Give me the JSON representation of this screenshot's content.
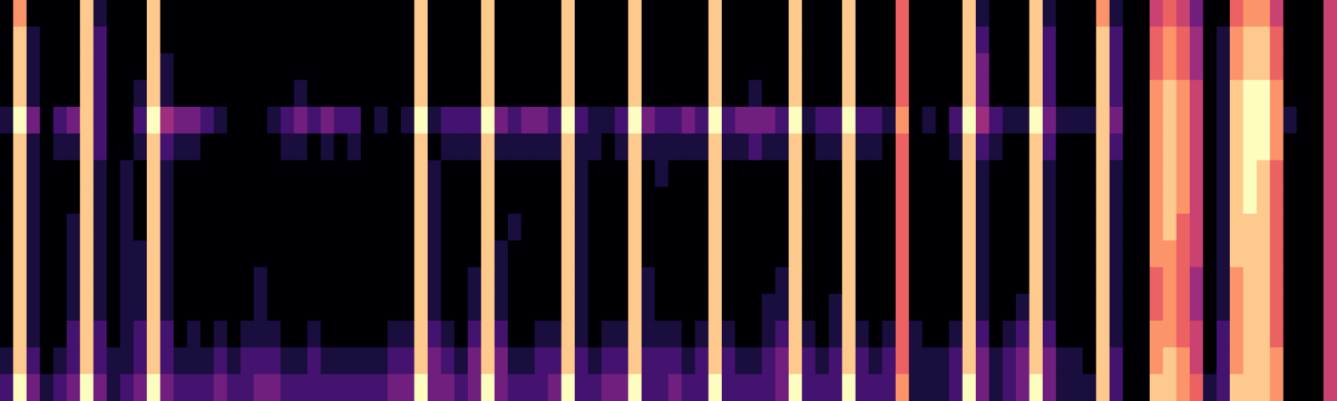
{
  "chart_data": {
    "type": "heatmap",
    "grid": false,
    "tick_labels": false,
    "cells": [
      [
        0,
        7,
        0,
        0,
        0,
        0,
        8,
        1,
        0,
        0,
        0,
        8,
        0,
        0,
        0,
        0,
        0,
        0,
        0,
        0,
        0,
        0,
        0,
        0,
        0,
        0,
        0,
        0,
        0,
        0,
        0,
        8,
        0,
        0,
        0,
        0,
        8,
        0,
        0,
        0,
        0,
        0,
        8,
        0,
        0,
        0,
        0,
        8,
        0,
        0,
        0,
        0,
        0,
        8,
        0,
        0,
        0,
        0,
        0,
        8,
        0,
        0,
        0,
        8,
        0,
        0,
        0,
        6,
        0,
        0,
        0,
        0,
        8,
        1,
        0,
        0,
        0,
        8,
        1,
        0,
        0,
        0,
        7,
        1,
        0,
        0,
        5,
        6,
        5,
        3,
        0,
        0,
        6,
        7,
        7,
        5,
        0,
        0,
        0,
        5
      ],
      [
        0,
        8,
        1,
        0,
        0,
        0,
        8,
        2,
        0,
        0,
        0,
        8,
        0,
        0,
        0,
        0,
        0,
        0,
        0,
        0,
        0,
        0,
        0,
        0,
        0,
        0,
        0,
        0,
        0,
        0,
        0,
        8,
        0,
        0,
        0,
        0,
        8,
        0,
        0,
        0,
        0,
        0,
        8,
        0,
        0,
        0,
        0,
        8,
        0,
        0,
        0,
        0,
        0,
        8,
        0,
        0,
        0,
        0,
        0,
        8,
        0,
        0,
        0,
        8,
        0,
        0,
        0,
        6,
        0,
        0,
        0,
        0,
        8,
        2,
        0,
        0,
        0,
        8,
        2,
        0,
        0,
        0,
        8,
        2,
        0,
        0,
        6,
        7,
        6,
        4,
        0,
        1,
        7,
        8,
        8,
        6,
        0,
        0,
        0,
        5
      ],
      [
        0,
        8,
        1,
        0,
        0,
        0,
        8,
        2,
        0,
        0,
        0,
        8,
        1,
        0,
        0,
        0,
        0,
        0,
        0,
        0,
        0,
        0,
        0,
        0,
        0,
        0,
        0,
        0,
        0,
        0,
        0,
        8,
        0,
        0,
        0,
        0,
        8,
        0,
        0,
        0,
        0,
        0,
        8,
        0,
        0,
        0,
        0,
        8,
        0,
        0,
        0,
        0,
        0,
        8,
        0,
        0,
        0,
        0,
        0,
        8,
        0,
        0,
        0,
        8,
        0,
        0,
        0,
        6,
        0,
        0,
        0,
        0,
        8,
        3,
        0,
        0,
        0,
        8,
        2,
        0,
        0,
        0,
        8,
        2,
        0,
        0,
        6,
        7,
        6,
        4,
        0,
        1,
        7,
        8,
        8,
        6,
        0,
        0,
        0,
        5
      ],
      [
        0,
        8,
        1,
        0,
        0,
        0,
        8,
        2,
        0,
        0,
        1,
        8,
        1,
        0,
        0,
        0,
        0,
        0,
        0,
        0,
        0,
        0,
        1,
        0,
        0,
        0,
        0,
        0,
        0,
        0,
        0,
        8,
        0,
        0,
        0,
        0,
        8,
        0,
        0,
        0,
        0,
        0,
        8,
        0,
        0,
        0,
        0,
        8,
        0,
        0,
        0,
        0,
        0,
        8,
        0,
        0,
        1,
        0,
        0,
        8,
        0,
        0,
        0,
        8,
        0,
        0,
        0,
        6,
        0,
        0,
        0,
        0,
        8,
        3,
        0,
        0,
        0,
        8,
        2,
        0,
        0,
        0,
        8,
        2,
        0,
        0,
        7,
        8,
        7,
        5,
        0,
        1,
        8,
        9,
        9,
        7,
        0,
        0,
        0,
        5
      ],
      [
        1,
        9,
        3,
        0,
        2,
        3,
        8,
        2,
        0,
        0,
        2,
        9,
        4,
        3,
        3,
        2,
        1,
        0,
        0,
        0,
        1,
        2,
        3,
        2,
        3,
        2,
        2,
        0,
        1,
        0,
        1,
        9,
        1,
        2,
        2,
        2,
        9,
        3,
        2,
        3,
        3,
        2,
        9,
        2,
        1,
        1,
        2,
        9,
        3,
        2,
        2,
        3,
        2,
        9,
        2,
        3,
        3,
        3,
        2,
        9,
        1,
        2,
        2,
        9,
        2,
        2,
        1,
        7,
        0,
        1,
        0,
        2,
        9,
        4,
        2,
        1,
        1,
        9,
        3,
        1,
        1,
        1,
        8,
        3,
        0,
        0,
        7,
        8,
        7,
        5,
        0,
        1,
        8,
        9,
        9,
        7,
        1,
        0,
        0,
        5
      ],
      [
        0,
        8,
        1,
        0,
        1,
        1,
        8,
        2,
        0,
        0,
        1,
        8,
        2,
        1,
        1,
        0,
        0,
        0,
        0,
        0,
        0,
        1,
        1,
        0,
        1,
        0,
        1,
        0,
        0,
        0,
        0,
        8,
        0,
        1,
        1,
        1,
        8,
        1,
        1,
        1,
        1,
        1,
        8,
        1,
        1,
        0,
        1,
        8,
        1,
        1,
        1,
        1,
        1,
        8,
        1,
        1,
        2,
        1,
        1,
        8,
        0,
        1,
        1,
        8,
        1,
        1,
        0,
        6,
        0,
        0,
        0,
        1,
        8,
        2,
        1,
        0,
        0,
        8,
        2,
        0,
        0,
        0,
        8,
        2,
        0,
        0,
        7,
        8,
        7,
        5,
        0,
        1,
        8,
        9,
        9,
        7,
        0,
        0,
        0,
        5
      ],
      [
        0,
        8,
        1,
        0,
        0,
        0,
        8,
        1,
        0,
        1,
        0,
        8,
        1,
        0,
        0,
        0,
        0,
        0,
        0,
        0,
        0,
        0,
        0,
        0,
        0,
        0,
        0,
        0,
        0,
        0,
        0,
        8,
        1,
        0,
        0,
        0,
        8,
        0,
        0,
        0,
        0,
        0,
        8,
        1,
        0,
        0,
        0,
        8,
        0,
        1,
        0,
        0,
        0,
        8,
        0,
        0,
        0,
        0,
        0,
        8,
        0,
        0,
        0,
        8,
        0,
        0,
        0,
        6,
        0,
        0,
        0,
        0,
        8,
        1,
        0,
        0,
        0,
        8,
        1,
        0,
        0,
        0,
        8,
        1,
        0,
        0,
        7,
        8,
        7,
        5,
        0,
        1,
        8,
        9,
        8,
        6,
        0,
        0,
        0,
        5
      ],
      [
        0,
        8,
        1,
        0,
        0,
        0,
        8,
        1,
        0,
        1,
        0,
        8,
        1,
        0,
        0,
        0,
        0,
        0,
        0,
        0,
        0,
        0,
        0,
        0,
        0,
        0,
        0,
        0,
        0,
        0,
        0,
        8,
        1,
        0,
        0,
        0,
        8,
        0,
        0,
        0,
        0,
        0,
        8,
        1,
        0,
        0,
        0,
        8,
        0,
        0,
        0,
        0,
        0,
        8,
        0,
        0,
        0,
        0,
        0,
        8,
        0,
        0,
        0,
        8,
        0,
        0,
        0,
        6,
        0,
        0,
        0,
        0,
        8,
        1,
        0,
        0,
        0,
        8,
        1,
        0,
        0,
        0,
        8,
        1,
        0,
        0,
        7,
        8,
        7,
        5,
        0,
        1,
        8,
        9,
        8,
        6,
        0,
        0,
        0,
        5
      ],
      [
        0,
        8,
        1,
        0,
        0,
        1,
        8,
        1,
        0,
        1,
        0,
        8,
        1,
        0,
        0,
        0,
        0,
        0,
        0,
        0,
        0,
        0,
        0,
        0,
        0,
        0,
        0,
        0,
        0,
        0,
        0,
        8,
        1,
        0,
        0,
        0,
        8,
        0,
        1,
        0,
        0,
        0,
        8,
        1,
        0,
        0,
        0,
        8,
        0,
        0,
        0,
        0,
        0,
        8,
        0,
        0,
        0,
        0,
        0,
        8,
        0,
        0,
        0,
        8,
        0,
        0,
        0,
        6,
        0,
        0,
        0,
        0,
        8,
        1,
        0,
        0,
        0,
        8,
        1,
        0,
        0,
        0,
        8,
        1,
        0,
        0,
        7,
        8,
        6,
        5,
        0,
        1,
        8,
        8,
        8,
        6,
        0,
        0,
        0,
        5
      ],
      [
        0,
        8,
        1,
        0,
        0,
        1,
        8,
        1,
        0,
        1,
        1,
        8,
        1,
        0,
        0,
        0,
        0,
        0,
        0,
        0,
        0,
        0,
        0,
        0,
        0,
        0,
        0,
        0,
        0,
        0,
        0,
        8,
        1,
        0,
        0,
        0,
        8,
        1,
        0,
        0,
        0,
        0,
        8,
        1,
        0,
        0,
        0,
        8,
        0,
        0,
        0,
        0,
        0,
        8,
        0,
        0,
        0,
        0,
        0,
        8,
        0,
        0,
        0,
        8,
        0,
        0,
        0,
        6,
        0,
        0,
        0,
        0,
        8,
        1,
        0,
        0,
        0,
        8,
        1,
        0,
        0,
        0,
        8,
        1,
        0,
        0,
        7,
        7,
        6,
        5,
        0,
        1,
        8,
        8,
        8,
        6,
        0,
        0,
        0,
        5
      ],
      [
        0,
        8,
        1,
        0,
        0,
        1,
        8,
        1,
        0,
        1,
        1,
        8,
        1,
        0,
        0,
        0,
        0,
        0,
        0,
        1,
        0,
        0,
        0,
        0,
        0,
        0,
        0,
        0,
        0,
        0,
        0,
        8,
        1,
        0,
        0,
        1,
        8,
        1,
        0,
        0,
        0,
        0,
        8,
        1,
        0,
        0,
        0,
        8,
        1,
        0,
        0,
        0,
        0,
        8,
        0,
        0,
        0,
        0,
        1,
        8,
        0,
        0,
        0,
        8,
        0,
        0,
        0,
        6,
        0,
        0,
        0,
        0,
        8,
        1,
        0,
        0,
        0,
        8,
        1,
        0,
        0,
        0,
        8,
        1,
        0,
        0,
        6,
        7,
        6,
        4,
        0,
        1,
        7,
        8,
        8,
        6,
        0,
        0,
        0,
        5
      ],
      [
        0,
        8,
        1,
        0,
        0,
        1,
        8,
        1,
        0,
        1,
        1,
        8,
        1,
        0,
        0,
        0,
        0,
        0,
        0,
        1,
        0,
        0,
        0,
        0,
        0,
        0,
        0,
        0,
        0,
        0,
        0,
        8,
        1,
        0,
        0,
        1,
        8,
        1,
        0,
        0,
        0,
        0,
        8,
        1,
        0,
        0,
        0,
        8,
        1,
        0,
        0,
        0,
        0,
        8,
        0,
        0,
        0,
        1,
        1,
        8,
        0,
        0,
        1,
        8,
        0,
        0,
        0,
        6,
        0,
        0,
        0,
        0,
        8,
        1,
        0,
        0,
        1,
        8,
        1,
        0,
        0,
        0,
        8,
        1,
        0,
        0,
        6,
        7,
        6,
        4,
        0,
        1,
        7,
        8,
        8,
        6,
        0,
        0,
        0,
        5
      ],
      [
        0,
        8,
        1,
        0,
        0,
        2,
        8,
        2,
        0,
        1,
        2,
        8,
        2,
        0,
        1,
        0,
        1,
        0,
        1,
        1,
        1,
        0,
        0,
        1,
        0,
        0,
        0,
        0,
        0,
        1,
        1,
        8,
        2,
        1,
        0,
        2,
        8,
        2,
        0,
        0,
        1,
        1,
        8,
        1,
        0,
        1,
        1,
        8,
        1,
        1,
        1,
        0,
        1,
        8,
        1,
        0,
        0,
        1,
        2,
        8,
        1,
        0,
        1,
        8,
        1,
        0,
        1,
        6,
        1,
        0,
        0,
        1,
        8,
        2,
        0,
        1,
        2,
        8,
        2,
        0,
        0,
        0,
        8,
        1,
        0,
        0,
        7,
        7,
        6,
        5,
        0,
        2,
        7,
        8,
        8,
        6,
        0,
        0,
        0,
        5
      ],
      [
        1,
        8,
        2,
        0,
        1,
        2,
        8,
        2,
        1,
        1,
        2,
        8,
        2,
        1,
        1,
        1,
        2,
        1,
        2,
        2,
        2,
        1,
        1,
        2,
        1,
        1,
        1,
        1,
        1,
        2,
        2,
        8,
        3,
        2,
        1,
        3,
        8,
        3,
        1,
        1,
        2,
        2,
        8,
        2,
        1,
        2,
        2,
        8,
        2,
        2,
        2,
        1,
        2,
        8,
        2,
        1,
        1,
        2,
        3,
        8,
        2,
        1,
        2,
        8,
        2,
        1,
        2,
        6,
        1,
        1,
        1,
        2,
        8,
        3,
        1,
        2,
        3,
        8,
        3,
        1,
        1,
        0,
        8,
        2,
        0,
        0,
        7,
        8,
        7,
        5,
        0,
        2,
        7,
        8,
        8,
        7,
        0,
        0,
        0,
        5
      ],
      [
        2,
        9,
        3,
        1,
        2,
        3,
        9,
        3,
        1,
        2,
        3,
        9,
        3,
        2,
        2,
        2,
        3,
        2,
        2,
        3,
        3,
        2,
        2,
        2,
        2,
        2,
        2,
        2,
        2,
        3,
        3,
        9,
        3,
        3,
        2,
        3,
        9,
        3,
        2,
        2,
        2,
        3,
        9,
        2,
        2,
        3,
        3,
        9,
        2,
        2,
        3,
        2,
        2,
        9,
        2,
        2,
        2,
        2,
        3,
        9,
        2,
        2,
        2,
        9,
        2,
        2,
        2,
        7,
        1,
        1,
        1,
        2,
        9,
        3,
        1,
        2,
        3,
        9,
        3,
        1,
        1,
        1,
        8,
        2,
        0,
        0,
        8,
        8,
        7,
        6,
        1,
        2,
        8,
        8,
        8,
        7,
        0,
        0,
        0,
        5
      ]
    ]
  }
}
